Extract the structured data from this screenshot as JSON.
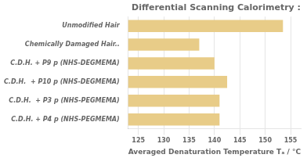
{
  "chart_data": {
    "type": "bar",
    "orientation": "horizontal",
    "title": "Differential Scanning Calorimetry :",
    "xlabel": "Averaged Denaturation Temperature Tₐ / °C",
    "categories": [
      "C.D.H. + P4 p (NHS-PEGMEMA)",
      "C.D.H.  + P3 p (NHS-PEGMEMA)",
      "C.D.H.  + P10 p (NHS-DEGMEMA)",
      "C.D.H. + P9 p (NHS-DEGMEMA)",
      "Chemically Damaged Hair..",
      "Unmodified Hair"
    ],
    "values": [
      141.0,
      141.0,
      142.5,
      140.0,
      137.0,
      153.5
    ],
    "color": "#E8CC88",
    "xlim": [
      123,
      157
    ],
    "xticks": [
      125,
      130,
      135,
      140,
      145,
      150,
      155
    ],
    "grid": true
  }
}
